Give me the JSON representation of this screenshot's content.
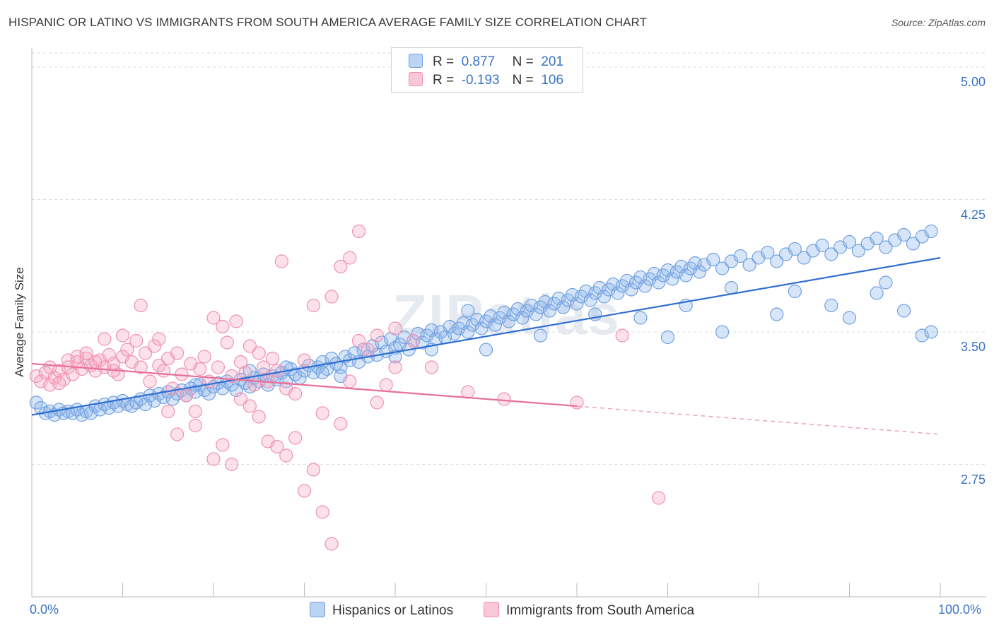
{
  "title": "HISPANIC OR LATINO VS IMMIGRANTS FROM SOUTH AMERICA AVERAGE FAMILY SIZE CORRELATION CHART",
  "source": "Source: ZipAtlas.com",
  "watermark": "ZIPatlas",
  "legend_top": {
    "rows": [
      {
        "r_label": "R =",
        "r_value": "0.877",
        "n_label": "N =",
        "n_value": "201",
        "color": "#6fa0e0"
      },
      {
        "r_label": "R =",
        "r_value": "-0.193",
        "n_label": "N =",
        "n_value": "106",
        "color": "#f08fb0"
      }
    ]
  },
  "legend_bottom": [
    {
      "label": "Hispanics or Latinos",
      "color": "#6fa0e0"
    },
    {
      "label": "Immigrants from South America",
      "color": "#f08fb0"
    }
  ],
  "chart_data": {
    "type": "scatter",
    "title": "HISPANIC OR LATINO VS IMMIGRANTS FROM SOUTH AMERICA AVERAGE FAMILY SIZE CORRELATION CHART",
    "xlabel": "",
    "ylabel": "Average Family Size",
    "x_tick_labels": [
      "0.0%",
      "100.0%"
    ],
    "y_ticks": [
      2.75,
      3.5,
      4.25,
      5.0
    ],
    "y_tick_labels": [
      "2.75",
      "3.50",
      "4.25",
      "5.00"
    ],
    "xlim": [
      0,
      100
    ],
    "ylim": [
      2.0,
      5.08
    ],
    "grid": true,
    "legend_placement": "top-center",
    "series": [
      {
        "name": "Hispanics or Latinos",
        "color": "#6fa0e0",
        "r": 0.877,
        "n": 201,
        "trend": {
          "x": [
            0,
            100
          ],
          "y": [
            3.03,
            3.92
          ]
        },
        "points": [
          [
            0.5,
            3.1
          ],
          [
            1,
            3.07
          ],
          [
            1.5,
            3.04
          ],
          [
            2,
            3.05
          ],
          [
            2.5,
            3.03
          ],
          [
            3,
            3.06
          ],
          [
            3.5,
            3.04
          ],
          [
            4,
            3.05
          ],
          [
            4.5,
            3.04
          ],
          [
            5,
            3.06
          ],
          [
            5.5,
            3.03
          ],
          [
            6,
            3.05
          ],
          [
            6.5,
            3.04
          ],
          [
            7,
            3.08
          ],
          [
            7.5,
            3.06
          ],
          [
            8,
            3.09
          ],
          [
            8.5,
            3.07
          ],
          [
            9,
            3.1
          ],
          [
            9.5,
            3.08
          ],
          [
            10,
            3.11
          ],
          [
            10.5,
            3.09
          ],
          [
            11,
            3.08
          ],
          [
            11.5,
            3.1
          ],
          [
            12,
            3.12
          ],
          [
            12.5,
            3.09
          ],
          [
            13,
            3.14
          ],
          [
            13.5,
            3.11
          ],
          [
            14,
            3.15
          ],
          [
            14.5,
            3.13
          ],
          [
            15,
            3.16
          ],
          [
            15.5,
            3.12
          ],
          [
            16,
            3.15
          ],
          [
            16.5,
            3.17
          ],
          [
            17,
            3.14
          ],
          [
            17.5,
            3.18
          ],
          [
            18,
            3.16
          ],
          [
            18.5,
            3.2
          ],
          [
            19,
            3.17
          ],
          [
            19.5,
            3.15
          ],
          [
            20,
            3.19
          ],
          [
            20.5,
            3.21
          ],
          [
            21,
            3.18
          ],
          [
            21.5,
            3.22
          ],
          [
            22,
            3.2
          ],
          [
            22.5,
            3.17
          ],
          [
            23,
            3.23
          ],
          [
            23.5,
            3.21
          ],
          [
            24,
            3.19
          ],
          [
            24.5,
            3.24
          ],
          [
            25,
            3.22
          ],
          [
            25.5,
            3.26
          ],
          [
            26,
            3.2
          ],
          [
            26.5,
            3.25
          ],
          [
            27,
            3.23
          ],
          [
            27.5,
            3.27
          ],
          [
            28,
            3.22
          ],
          [
            28.5,
            3.29
          ],
          [
            29,
            3.26
          ],
          [
            29.5,
            3.24
          ],
          [
            30,
            3.28
          ],
          [
            30.5,
            3.31
          ],
          [
            31,
            3.27
          ],
          [
            31.5,
            3.3
          ],
          [
            32,
            3.33
          ],
          [
            32.5,
            3.29
          ],
          [
            33,
            3.35
          ],
          [
            33.5,
            3.32
          ],
          [
            34,
            3.3
          ],
          [
            34.5,
            3.36
          ],
          [
            35,
            3.34
          ],
          [
            35.5,
            3.38
          ],
          [
            36,
            3.33
          ],
          [
            36.5,
            3.4
          ],
          [
            37,
            3.36
          ],
          [
            37.5,
            3.42
          ],
          [
            38,
            3.37
          ],
          [
            38.5,
            3.44
          ],
          [
            39,
            3.39
          ],
          [
            39.5,
            3.46
          ],
          [
            40,
            3.41
          ],
          [
            40.5,
            3.43
          ],
          [
            41,
            3.47
          ],
          [
            41.5,
            3.4
          ],
          [
            42,
            3.45
          ],
          [
            42.5,
            3.49
          ],
          [
            43,
            3.44
          ],
          [
            43.5,
            3.48
          ],
          [
            44,
            3.51
          ],
          [
            44.5,
            3.46
          ],
          [
            45,
            3.5
          ],
          [
            45.5,
            3.47
          ],
          [
            46,
            3.53
          ],
          [
            46.5,
            3.49
          ],
          [
            47,
            3.52
          ],
          [
            47.5,
            3.55
          ],
          [
            48,
            3.5
          ],
          [
            48.5,
            3.54
          ],
          [
            49,
            3.57
          ],
          [
            49.5,
            3.52
          ],
          [
            50,
            3.56
          ],
          [
            50.5,
            3.59
          ],
          [
            51,
            3.54
          ],
          [
            51.5,
            3.58
          ],
          [
            52,
            3.61
          ],
          [
            52.5,
            3.56
          ],
          [
            53,
            3.6
          ],
          [
            53.5,
            3.63
          ],
          [
            54,
            3.58
          ],
          [
            54.5,
            3.62
          ],
          [
            55,
            3.65
          ],
          [
            55.5,
            3.6
          ],
          [
            56,
            3.64
          ],
          [
            56.5,
            3.67
          ],
          [
            57,
            3.62
          ],
          [
            57.5,
            3.66
          ],
          [
            58,
            3.69
          ],
          [
            58.5,
            3.64
          ],
          [
            59,
            3.68
          ],
          [
            59.5,
            3.71
          ],
          [
            60,
            3.66
          ],
          [
            60.5,
            3.7
          ],
          [
            61,
            3.73
          ],
          [
            61.5,
            3.68
          ],
          [
            62,
            3.72
          ],
          [
            62.5,
            3.75
          ],
          [
            63,
            3.7
          ],
          [
            63.5,
            3.74
          ],
          [
            64,
            3.77
          ],
          [
            64.5,
            3.72
          ],
          [
            65,
            3.76
          ],
          [
            65.5,
            3.79
          ],
          [
            66,
            3.74
          ],
          [
            66.5,
            3.78
          ],
          [
            67,
            3.81
          ],
          [
            67.5,
            3.76
          ],
          [
            68,
            3.8
          ],
          [
            68.5,
            3.83
          ],
          [
            69,
            3.78
          ],
          [
            69.5,
            3.82
          ],
          [
            70,
            3.85
          ],
          [
            70.5,
            3.8
          ],
          [
            71,
            3.84
          ],
          [
            71.5,
            3.87
          ],
          [
            72,
            3.82
          ],
          [
            72.5,
            3.86
          ],
          [
            73,
            3.89
          ],
          [
            73.5,
            3.84
          ],
          [
            74,
            3.88
          ],
          [
            75,
            3.91
          ],
          [
            76,
            3.86
          ],
          [
            77,
            3.9
          ],
          [
            78,
            3.93
          ],
          [
            79,
            3.88
          ],
          [
            80,
            3.92
          ],
          [
            81,
            3.95
          ],
          [
            82,
            3.9
          ],
          [
            83,
            3.94
          ],
          [
            84,
            3.97
          ],
          [
            85,
            3.92
          ],
          [
            86,
            3.96
          ],
          [
            87,
            3.99
          ],
          [
            88,
            3.94
          ],
          [
            89,
            3.98
          ],
          [
            90,
            4.01
          ],
          [
            91,
            3.96
          ],
          [
            92,
            4.0
          ],
          [
            93,
            4.03
          ],
          [
            94,
            3.98
          ],
          [
            95,
            4.02
          ],
          [
            96,
            4.05
          ],
          [
            97,
            4.0
          ],
          [
            98,
            4.04
          ],
          [
            99,
            4.07
          ],
          [
            18,
            3.2
          ],
          [
            24,
            3.28
          ],
          [
            32,
            3.27
          ],
          [
            44,
            3.4
          ],
          [
            48,
            3.62
          ],
          [
            56,
            3.48
          ],
          [
            62,
            3.6
          ],
          [
            67,
            3.58
          ],
          [
            72,
            3.65
          ],
          [
            77,
            3.75
          ],
          [
            84,
            3.73
          ],
          [
            88,
            3.65
          ],
          [
            93,
            3.72
          ],
          [
            96,
            3.62
          ],
          [
            98,
            3.48
          ],
          [
            99,
            3.5
          ],
          [
            50,
            3.4
          ],
          [
            40,
            3.36
          ],
          [
            34,
            3.25
          ],
          [
            28,
            3.3
          ],
          [
            70,
            3.47
          ],
          [
            76,
            3.5
          ],
          [
            82,
            3.6
          ],
          [
            90,
            3.58
          ],
          [
            94,
            3.78
          ]
        ]
      },
      {
        "name": "Immigrants from South America",
        "color": "#f08fb0",
        "r": -0.193,
        "n": 106,
        "trend": {
          "x": [
            0,
            60
          ],
          "y": [
            3.32,
            3.08
          ],
          "dashed_to": {
            "x": 100,
            "y": 2.92
          }
        },
        "points": [
          [
            0.5,
            3.25
          ],
          [
            1,
            3.22
          ],
          [
            1.5,
            3.27
          ],
          [
            2,
            3.2
          ],
          [
            2.5,
            3.24
          ],
          [
            3,
            3.28
          ],
          [
            3.5,
            3.23
          ],
          [
            4,
            3.3
          ],
          [
            4.5,
            3.26
          ],
          [
            5,
            3.33
          ],
          [
            5.5,
            3.29
          ],
          [
            6,
            3.35
          ],
          [
            6.5,
            3.31
          ],
          [
            7,
            3.28
          ],
          [
            7.5,
            3.34
          ],
          [
            8,
            3.3
          ],
          [
            8.5,
            3.37
          ],
          [
            9,
            3.32
          ],
          [
            9.5,
            3.26
          ],
          [
            10,
            3.36
          ],
          [
            10.5,
            3.4
          ],
          [
            11,
            3.33
          ],
          [
            11.5,
            3.45
          ],
          [
            12,
            3.3
          ],
          [
            12.5,
            3.38
          ],
          [
            13,
            3.22
          ],
          [
            13.5,
            3.42
          ],
          [
            14,
            3.31
          ],
          [
            14.5,
            3.28
          ],
          [
            15,
            3.35
          ],
          [
            15.5,
            3.18
          ],
          [
            16,
            3.38
          ],
          [
            16.5,
            3.26
          ],
          [
            17,
            3.14
          ],
          [
            17.5,
            3.32
          ],
          [
            18,
            3.05
          ],
          [
            18.5,
            3.29
          ],
          [
            19,
            3.36
          ],
          [
            19.5,
            3.22
          ],
          [
            20,
            3.58
          ],
          [
            20.5,
            3.3
          ],
          [
            21,
            3.53
          ],
          [
            21.5,
            3.44
          ],
          [
            22,
            3.25
          ],
          [
            22.5,
            3.56
          ],
          [
            23,
            3.33
          ],
          [
            23.5,
            3.27
          ],
          [
            24,
            3.42
          ],
          [
            24.5,
            3.2
          ],
          [
            25,
            3.38
          ],
          [
            25.5,
            3.3
          ],
          [
            26,
            3.22
          ],
          [
            26.5,
            3.35
          ],
          [
            27,
            3.28
          ],
          [
            27.5,
            3.9
          ],
          [
            28,
            3.18
          ],
          [
            29,
            3.15
          ],
          [
            30,
            3.34
          ],
          [
            31,
            3.65
          ],
          [
            32,
            3.04
          ],
          [
            33,
            3.7
          ],
          [
            34,
            2.98
          ],
          [
            35,
            3.22
          ],
          [
            36,
            3.45
          ],
          [
            37,
            3.4
          ],
          [
            38,
            3.48
          ],
          [
            39,
            3.2
          ],
          [
            40,
            3.3
          ],
          [
            12,
            3.65
          ],
          [
            10,
            3.48
          ],
          [
            8,
            3.46
          ],
          [
            14,
            3.46
          ],
          [
            6,
            3.38
          ],
          [
            4,
            3.34
          ],
          [
            2,
            3.3
          ],
          [
            3,
            3.21
          ],
          [
            5,
            3.36
          ],
          [
            7,
            3.33
          ],
          [
            9,
            3.28
          ],
          [
            15,
            3.05
          ],
          [
            16,
            2.92
          ],
          [
            18,
            2.97
          ],
          [
            20,
            2.78
          ],
          [
            21,
            2.86
          ],
          [
            22,
            2.75
          ],
          [
            23,
            3.12
          ],
          [
            24,
            3.08
          ],
          [
            25,
            3.02
          ],
          [
            26,
            2.88
          ],
          [
            27,
            2.85
          ],
          [
            28,
            2.8
          ],
          [
            29,
            2.9
          ],
          [
            30,
            2.6
          ],
          [
            31,
            2.72
          ],
          [
            32,
            2.48
          ],
          [
            33,
            2.3
          ],
          [
            34,
            3.87
          ],
          [
            35,
            3.92
          ],
          [
            36,
            4.07
          ],
          [
            38,
            3.1
          ],
          [
            40,
            3.52
          ],
          [
            42,
            3.45
          ],
          [
            44,
            3.3
          ],
          [
            48,
            3.16
          ],
          [
            52,
            3.12
          ],
          [
            60,
            3.1
          ],
          [
            65,
            3.48
          ],
          [
            69,
            2.56
          ]
        ]
      }
    ]
  }
}
